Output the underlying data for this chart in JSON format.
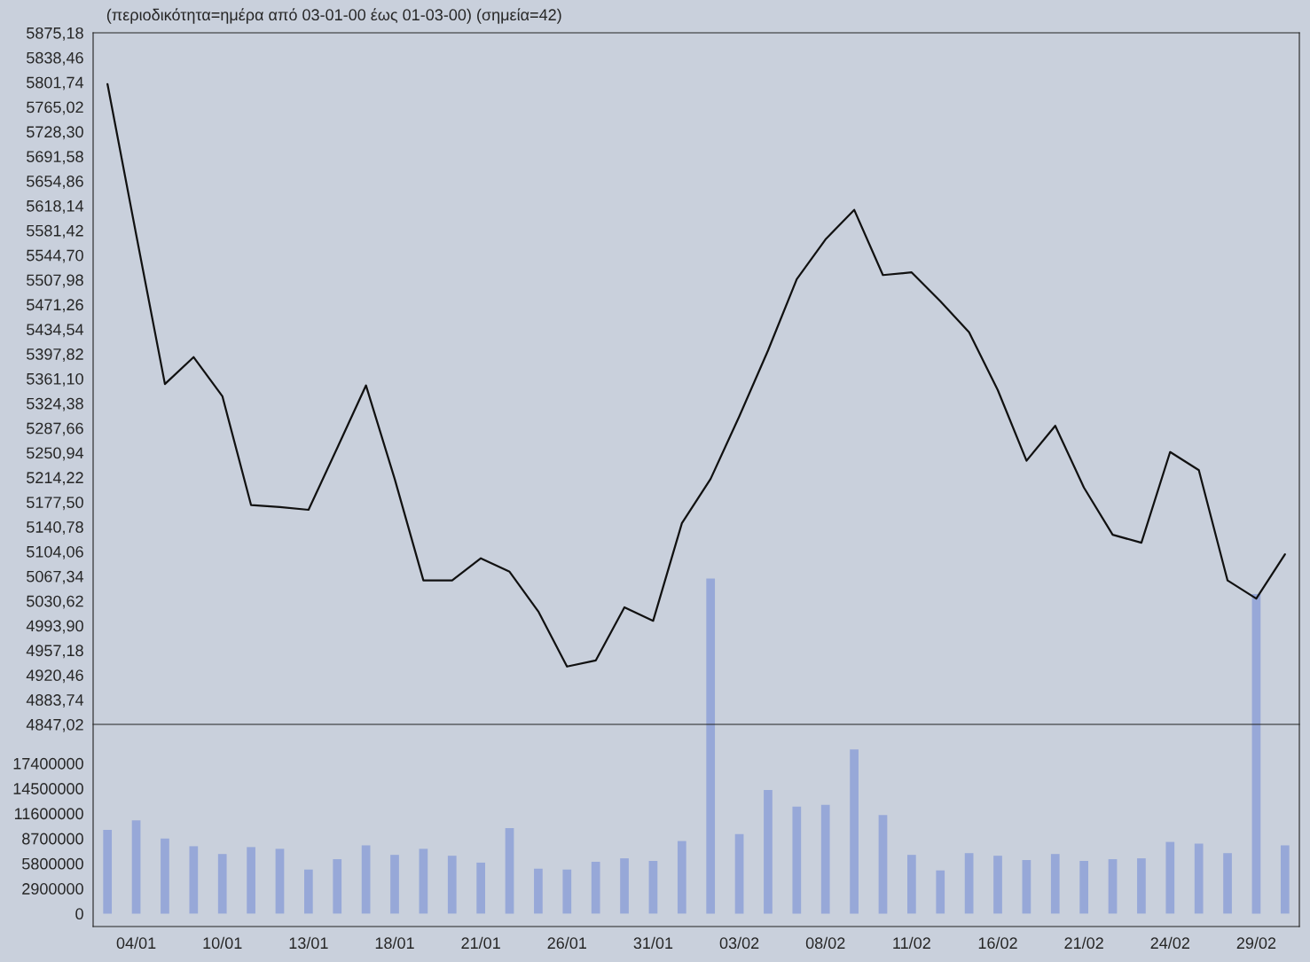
{
  "chart_data": [
    {
      "type": "line",
      "title": "(περιοδικότητα=ημέρα από 03-01-00 έως 01-03-00) (σημεία=42)",
      "tick_labels": "y",
      "grid": false,
      "legend": false,
      "categories": [
        null,
        null,
        null,
        null,
        null,
        null,
        null,
        null,
        null,
        null,
        null,
        null,
        null,
        null,
        null,
        null,
        null,
        null,
        null,
        null,
        null,
        null,
        null,
        null,
        null,
        null,
        null,
        null,
        null,
        null,
        null,
        null,
        null,
        null,
        null,
        null,
        null,
        null,
        null,
        null,
        null,
        null
      ],
      "series": [
        {
          "color": "#111111",
          "values": [
            5799,
            5575,
            5353,
            5393,
            5335,
            5173,
            5170,
            5166,
            5258,
            5351,
            5212,
            5061,
            5061,
            5094,
            5074,
            5015,
            4933,
            4942,
            5021,
            5001,
            5146,
            5212,
            5305,
            5403,
            5509,
            5568,
            5612,
            5515,
            5519,
            5476,
            5430,
            5344,
            5239,
            5291,
            5199,
            5129,
            5117,
            5252,
            5225,
            5061,
            5034,
            5100
          ]
        }
      ],
      "ylim": [
        4847.02,
        5875.18
      ],
      "yticks": [
        {
          "value": 4847.02,
          "label": "4847,02"
        },
        {
          "value": 4883.74,
          "label": "4883,74"
        },
        {
          "value": 4920.46,
          "label": "4920,46"
        },
        {
          "value": 4957.18,
          "label": "4957,18"
        },
        {
          "value": 4993.9,
          "label": "4993,90"
        },
        {
          "value": 5030.62,
          "label": "5030,62"
        },
        {
          "value": 5067.34,
          "label": "5067,34"
        },
        {
          "value": 5104.06,
          "label": "5104,06"
        },
        {
          "value": 5140.78,
          "label": "5140,78"
        },
        {
          "value": 5177.5,
          "label": "5177,50"
        },
        {
          "value": 5214.22,
          "label": "5214,22"
        },
        {
          "value": 5250.94,
          "label": "5250,94"
        },
        {
          "value": 5287.66,
          "label": "5287,66"
        },
        {
          "value": 5324.38,
          "label": "5324,38"
        },
        {
          "value": 5361.1,
          "label": "5361,10"
        },
        {
          "value": 5397.82,
          "label": "5397,82"
        },
        {
          "value": 5434.54,
          "label": "5434,54"
        },
        {
          "value": 5471.26,
          "label": "5471,26"
        },
        {
          "value": 5507.98,
          "label": "5507,98"
        },
        {
          "value": 5544.7,
          "label": "5544,70"
        },
        {
          "value": 5581.42,
          "label": "5581,42"
        },
        {
          "value": 5618.14,
          "label": "5618,14"
        },
        {
          "value": 5654.86,
          "label": "5654,86"
        },
        {
          "value": 5691.58,
          "label": "5691,58"
        },
        {
          "value": 5728.3,
          "label": "5728,30"
        },
        {
          "value": 5765.02,
          "label": "5765,02"
        },
        {
          "value": 5801.74,
          "label": "5801,74"
        },
        {
          "value": 5838.46,
          "label": "5838,46"
        },
        {
          "value": 5875.18,
          "label": "5875,18"
        }
      ]
    },
    {
      "type": "bar",
      "grid": false,
      "legend": false,
      "categories": [
        null,
        "04/01",
        null,
        null,
        "10/01",
        null,
        null,
        "13/01",
        null,
        null,
        "18/01",
        null,
        null,
        "21/01",
        null,
        null,
        "26/01",
        null,
        null,
        "31/01",
        null,
        null,
        "03/02",
        null,
        null,
        "08/02",
        null,
        null,
        "11/02",
        null,
        null,
        "16/02",
        null,
        null,
        "21/02",
        null,
        null,
        "24/02",
        null,
        null,
        "29/02",
        null
      ],
      "series": [
        {
          "color": "#97a8d8",
          "values": [
            9700000,
            10800000,
            8700000,
            7800000,
            6900000,
            7700000,
            7500000,
            5100000,
            6300000,
            7900000,
            6800000,
            7500000,
            6700000,
            5900000,
            9900000,
            5200000,
            5100000,
            6000000,
            6400000,
            6100000,
            8400000,
            38800000,
            9200000,
            14300000,
            12400000,
            12600000,
            19000000,
            11400000,
            6800000,
            5000000,
            7000000,
            6700000,
            6200000,
            6900000,
            6100000,
            6300000,
            6400000,
            8300000,
            8100000,
            7000000,
            37000000,
            7900000
          ]
        }
      ],
      "ylim": [
        -1500000,
        102000000
      ],
      "yticks": [
        0,
        2900000,
        5800000,
        8700000,
        11600000,
        14500000,
        17400000
      ]
    }
  ]
}
